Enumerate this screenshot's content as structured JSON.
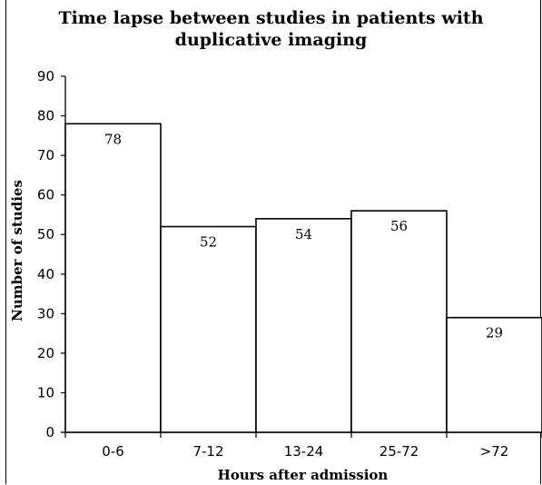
{
  "chart_data": {
    "type": "bar",
    "title_lines": [
      "Time lapse between studies in patients with",
      "duplicative imaging"
    ],
    "xlabel": "Hours after admission",
    "ylabel": "Number of studies",
    "categories": [
      "0-6",
      "7-12",
      "13-24",
      "25-72",
      ">72"
    ],
    "values": [
      78,
      52,
      54,
      56,
      29
    ],
    "data_labels": [
      "78",
      "52",
      "54",
      "56",
      "29"
    ],
    "y_ticks": [
      "0",
      "10",
      "20",
      "30",
      "40",
      "50",
      "60",
      "70",
      "80",
      "90"
    ],
    "ylim": [
      0,
      90
    ],
    "grid": false,
    "bar_color": "#ffffff",
    "edge_color": "#000000"
  }
}
